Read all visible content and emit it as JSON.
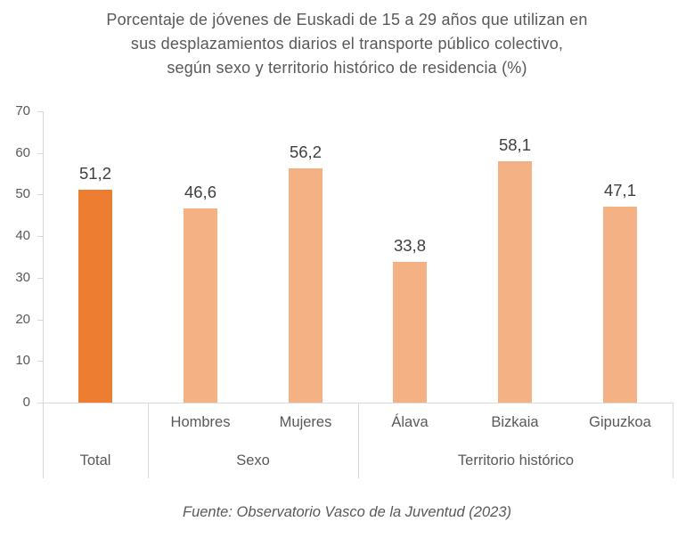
{
  "title": "Porcentaje de jóvenes de Euskadi de 15 a 29 años que utilizan en\nsus desplazamientos diarios el transporte público colectivo,\nsegún sexo y territorio histórico de residencia (%)",
  "footer": "Fuente: Observatorio Vasco de la Juventud (2023)",
  "colors": {
    "accent_bar": "#ED7D31",
    "light_bar": "#F4B183",
    "axis_line": "#D9D9D9",
    "label_gray": "#595959",
    "value_dark": "#404040"
  },
  "chart_data": {
    "type": "bar",
    "title": "Porcentaje de jóvenes de Euskadi de 15 a 29 años que utilizan en sus desplazamientos diarios el transporte público colectivo, según sexo y territorio histórico de residencia (%)",
    "categories": [
      "Total",
      "Hombres",
      "Mujeres",
      "Alava",
      "Bizkaia",
      "Gipuzkoa"
    ],
    "values": [
      51.2,
      46.6,
      56.2,
      33.8,
      58.1,
      47.1
    ],
    "value_labels": [
      "51,2",
      "46,6",
      "56,2",
      "33,8",
      "58,1",
      "47,1"
    ],
    "bar_colors": [
      "#ED7D31",
      "#F4B183",
      "#F4B183",
      "#F4B183",
      "#F4B183",
      "#F4B183"
    ],
    "sublabels": [
      "",
      "Hombres",
      "Mujeres",
      "Álava",
      "Bizkaia",
      "Gipuzkoa"
    ],
    "groups": [
      {
        "label": "Total",
        "count": 1
      },
      {
        "label": "Sexo",
        "count": 2
      },
      {
        "label": "Territorio histórico",
        "count": 3
      }
    ],
    "y_ticks": [
      0,
      10,
      20,
      30,
      40,
      50,
      60,
      70
    ],
    "ylim": [
      0,
      70
    ],
    "grid": false,
    "legend": "none",
    "xlabel": "",
    "ylabel": "",
    "source": "Fuente: Observatorio Vasco de la Juventud (2023)"
  }
}
